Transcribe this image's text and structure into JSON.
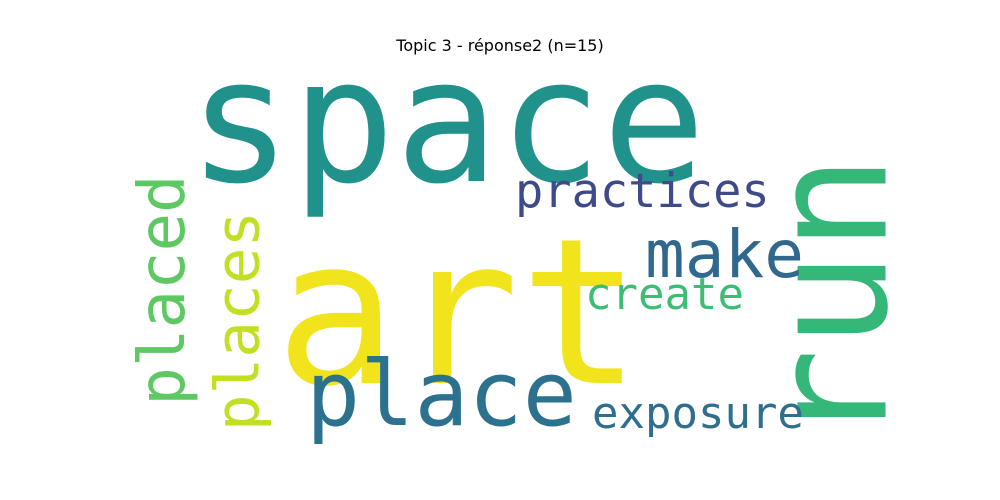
{
  "title": "Topic 3 - réponse2 (n=15)",
  "chart_data": {
    "type": "wordcloud",
    "words": [
      {
        "text": "space",
        "color": "#21918c",
        "orientation": "horizontal"
      },
      {
        "text": "art",
        "color": "#f2e41c",
        "orientation": "horizontal"
      },
      {
        "text": "run",
        "color": "#35b779",
        "orientation": "vertical"
      },
      {
        "text": "place",
        "color": "#2c718e",
        "orientation": "horizontal"
      },
      {
        "text": "practices",
        "color": "#3e4a89",
        "orientation": "horizontal"
      },
      {
        "text": "make",
        "color": "#31688e",
        "orientation": "horizontal"
      },
      {
        "text": "placed",
        "color": "#5ec962",
        "orientation": "vertical"
      },
      {
        "text": "places",
        "color": "#c2df23",
        "orientation": "vertical"
      },
      {
        "text": "create",
        "color": "#3dbc74",
        "orientation": "horizontal"
      },
      {
        "text": "exposure",
        "color": "#2e6f8e",
        "orientation": "horizontal"
      }
    ]
  }
}
